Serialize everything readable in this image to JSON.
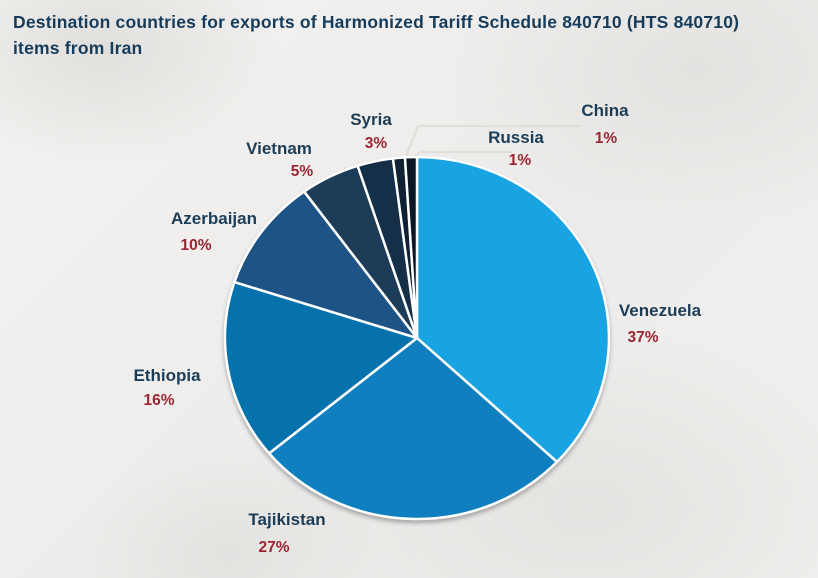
{
  "title": {
    "line1": "Destination countries for exports of Harmonized Tariff Schedule 840710 (HTS 840710)",
    "line2": "items from Iran"
  },
  "chart_data": {
    "type": "pie",
    "title": "Destination countries for exports of Harmonized Tariff Schedule 840710 (HTS 840710) items from Iran",
    "categories": [
      "Venezuela",
      "Tajikistan",
      "Ethiopia",
      "Azerbaijan",
      "Vietnam",
      "Syria",
      "Russia",
      "China"
    ],
    "values": [
      37,
      27,
      16,
      10,
      5,
      3,
      1,
      1
    ],
    "percent_labels": [
      "37%",
      "27%",
      "16%",
      "10%",
      "5%",
      "3%",
      "1%",
      "1%"
    ],
    "unit": "%",
    "direction": "clockwise",
    "start_angle_deg": 0,
    "labels_outside": true,
    "legend": "none",
    "slice_colors": [
      "#18A3E2",
      "#0F7FBF",
      "#0672AC",
      "#1E5485",
      "#1C3C58",
      "#152F48",
      "#0F2132",
      "#0A1623"
    ],
    "slice_border_color": "#FFFFFF",
    "label_name_color": "#1C3D58",
    "label_value_color": "#9C2531",
    "title_color": "#163C5C",
    "leader_line_color": "#DFDEDA",
    "background_color": "#EFEEEC"
  }
}
